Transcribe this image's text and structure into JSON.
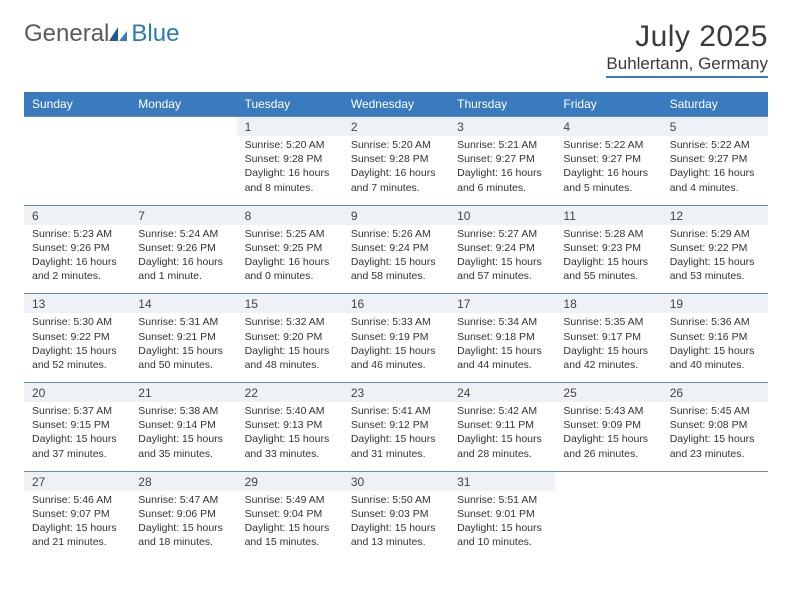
{
  "logo": {
    "part1": "General",
    "part2": "Blue"
  },
  "title": "July 2025",
  "location": "Buhlertann, Germany",
  "colors": {
    "header_bg": "#3a7bbf",
    "header_text": "#ffffff",
    "daynum_bg": "#eef1f5",
    "border": "#6a8aaa",
    "logo_gray": "#5a5a5a",
    "logo_blue": "#2a7ab8"
  },
  "day_headers": [
    "Sunday",
    "Monday",
    "Tuesday",
    "Wednesday",
    "Thursday",
    "Friday",
    "Saturday"
  ],
  "weeks": [
    {
      "nums": [
        "",
        "",
        "1",
        "2",
        "3",
        "4",
        "5"
      ],
      "cells": [
        [],
        [],
        [
          "Sunrise: 5:20 AM",
          "Sunset: 9:28 PM",
          "Daylight: 16 hours",
          "and 8 minutes."
        ],
        [
          "Sunrise: 5:20 AM",
          "Sunset: 9:28 PM",
          "Daylight: 16 hours",
          "and 7 minutes."
        ],
        [
          "Sunrise: 5:21 AM",
          "Sunset: 9:27 PM",
          "Daylight: 16 hours",
          "and 6 minutes."
        ],
        [
          "Sunrise: 5:22 AM",
          "Sunset: 9:27 PM",
          "Daylight: 16 hours",
          "and 5 minutes."
        ],
        [
          "Sunrise: 5:22 AM",
          "Sunset: 9:27 PM",
          "Daylight: 16 hours",
          "and 4 minutes."
        ]
      ]
    },
    {
      "nums": [
        "6",
        "7",
        "8",
        "9",
        "10",
        "11",
        "12"
      ],
      "cells": [
        [
          "Sunrise: 5:23 AM",
          "Sunset: 9:26 PM",
          "Daylight: 16 hours",
          "and 2 minutes."
        ],
        [
          "Sunrise: 5:24 AM",
          "Sunset: 9:26 PM",
          "Daylight: 16 hours",
          "and 1 minute."
        ],
        [
          "Sunrise: 5:25 AM",
          "Sunset: 9:25 PM",
          "Daylight: 16 hours",
          "and 0 minutes."
        ],
        [
          "Sunrise: 5:26 AM",
          "Sunset: 9:24 PM",
          "Daylight: 15 hours",
          "and 58 minutes."
        ],
        [
          "Sunrise: 5:27 AM",
          "Sunset: 9:24 PM",
          "Daylight: 15 hours",
          "and 57 minutes."
        ],
        [
          "Sunrise: 5:28 AM",
          "Sunset: 9:23 PM",
          "Daylight: 15 hours",
          "and 55 minutes."
        ],
        [
          "Sunrise: 5:29 AM",
          "Sunset: 9:22 PM",
          "Daylight: 15 hours",
          "and 53 minutes."
        ]
      ]
    },
    {
      "nums": [
        "13",
        "14",
        "15",
        "16",
        "17",
        "18",
        "19"
      ],
      "cells": [
        [
          "Sunrise: 5:30 AM",
          "Sunset: 9:22 PM",
          "Daylight: 15 hours",
          "and 52 minutes."
        ],
        [
          "Sunrise: 5:31 AM",
          "Sunset: 9:21 PM",
          "Daylight: 15 hours",
          "and 50 minutes."
        ],
        [
          "Sunrise: 5:32 AM",
          "Sunset: 9:20 PM",
          "Daylight: 15 hours",
          "and 48 minutes."
        ],
        [
          "Sunrise: 5:33 AM",
          "Sunset: 9:19 PM",
          "Daylight: 15 hours",
          "and 46 minutes."
        ],
        [
          "Sunrise: 5:34 AM",
          "Sunset: 9:18 PM",
          "Daylight: 15 hours",
          "and 44 minutes."
        ],
        [
          "Sunrise: 5:35 AM",
          "Sunset: 9:17 PM",
          "Daylight: 15 hours",
          "and 42 minutes."
        ],
        [
          "Sunrise: 5:36 AM",
          "Sunset: 9:16 PM",
          "Daylight: 15 hours",
          "and 40 minutes."
        ]
      ]
    },
    {
      "nums": [
        "20",
        "21",
        "22",
        "23",
        "24",
        "25",
        "26"
      ],
      "cells": [
        [
          "Sunrise: 5:37 AM",
          "Sunset: 9:15 PM",
          "Daylight: 15 hours",
          "and 37 minutes."
        ],
        [
          "Sunrise: 5:38 AM",
          "Sunset: 9:14 PM",
          "Daylight: 15 hours",
          "and 35 minutes."
        ],
        [
          "Sunrise: 5:40 AM",
          "Sunset: 9:13 PM",
          "Daylight: 15 hours",
          "and 33 minutes."
        ],
        [
          "Sunrise: 5:41 AM",
          "Sunset: 9:12 PM",
          "Daylight: 15 hours",
          "and 31 minutes."
        ],
        [
          "Sunrise: 5:42 AM",
          "Sunset: 9:11 PM",
          "Daylight: 15 hours",
          "and 28 minutes."
        ],
        [
          "Sunrise: 5:43 AM",
          "Sunset: 9:09 PM",
          "Daylight: 15 hours",
          "and 26 minutes."
        ],
        [
          "Sunrise: 5:45 AM",
          "Sunset: 9:08 PM",
          "Daylight: 15 hours",
          "and 23 minutes."
        ]
      ]
    },
    {
      "nums": [
        "27",
        "28",
        "29",
        "30",
        "31",
        "",
        ""
      ],
      "cells": [
        [
          "Sunrise: 5:46 AM",
          "Sunset: 9:07 PM",
          "Daylight: 15 hours",
          "and 21 minutes."
        ],
        [
          "Sunrise: 5:47 AM",
          "Sunset: 9:06 PM",
          "Daylight: 15 hours",
          "and 18 minutes."
        ],
        [
          "Sunrise: 5:49 AM",
          "Sunset: 9:04 PM",
          "Daylight: 15 hours",
          "and 15 minutes."
        ],
        [
          "Sunrise: 5:50 AM",
          "Sunset: 9:03 PM",
          "Daylight: 15 hours",
          "and 13 minutes."
        ],
        [
          "Sunrise: 5:51 AM",
          "Sunset: 9:01 PM",
          "Daylight: 15 hours",
          "and 10 minutes."
        ],
        [],
        []
      ]
    }
  ]
}
